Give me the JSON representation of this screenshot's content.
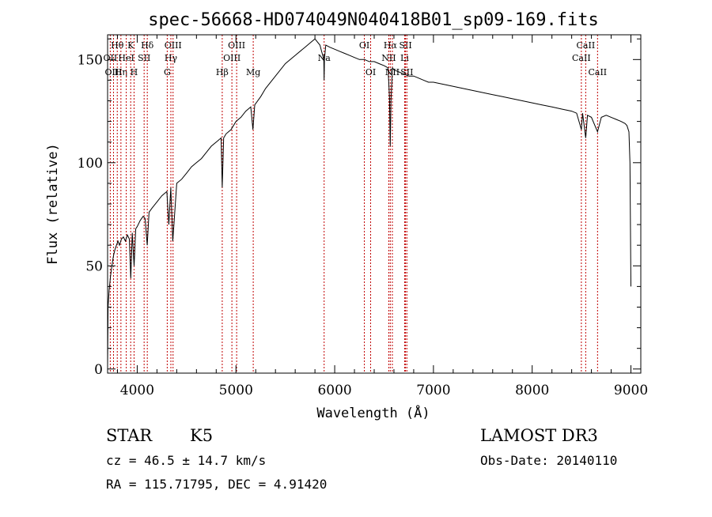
{
  "title": "spec-56668-HD074049N040418B01_sp09-169.fits",
  "info": {
    "class": "STAR",
    "subclass": "K5",
    "cz": "cz = 46.5 ± 14.7 km/s",
    "radec": "RA = 115.71795, DEC =   4.91420",
    "survey": "LAMOST DR3",
    "obsdate": "Obs-Date: 20140110"
  },
  "colors": {
    "line_marker": "#c00000",
    "spectrum": "#000000",
    "axes": "#000000"
  },
  "chart_data": {
    "type": "line",
    "title": "spec-56668-HD074049N040418B01_sp09-169.fits",
    "xlabel": "Wavelength (Å)",
    "ylabel": "Flux (relative)",
    "xlim": [
      3700,
      9100
    ],
    "ylim": [
      -2,
      162
    ],
    "xticks": [
      4000,
      5000,
      6000,
      7000,
      8000,
      9000
    ],
    "xtick_labels": [
      "4000",
      "5000",
      "6000",
      "7000",
      "8000",
      "9000"
    ],
    "yticks": [
      0,
      50,
      100,
      150
    ],
    "ytick_labels": [
      "0",
      "50",
      "100",
      "150"
    ],
    "grid": false,
    "series": [
      {
        "x": [
          3700,
          3705,
          3715,
          3730,
          3750,
          3760,
          3775,
          3790,
          3805,
          3820,
          3840,
          3860,
          3880,
          3900,
          3920,
          3935,
          3950,
          3968,
          3985,
          4000,
          4030,
          4060,
          4080,
          4101,
          4120,
          4150,
          4200,
          4250,
          4300,
          4320,
          4340,
          4360,
          4400,
          4450,
          4500,
          4550,
          4600,
          4650,
          4700,
          4750,
          4800,
          4850,
          4861,
          4875,
          4900,
          4950,
          5000,
          5050,
          5100,
          5150,
          5172,
          5190,
          5250,
          5300,
          5400,
          5500,
          5600,
          5700,
          5750,
          5800,
          5850,
          5890,
          5893,
          5896,
          5910,
          5950,
          6000,
          6050,
          6100,
          6150,
          6200,
          6250,
          6300,
          6350,
          6400,
          6450,
          6500,
          6540,
          6555,
          6563,
          6570,
          6585,
          6600,
          6650,
          6700,
          6750,
          6800,
          6850,
          6900,
          6950,
          7000,
          7100,
          7200,
          7300,
          7400,
          7500,
          7600,
          7700,
          7800,
          7900,
          8000,
          8100,
          8200,
          8300,
          8400,
          8450,
          8498,
          8510,
          8542,
          8560,
          8600,
          8662,
          8700,
          8750,
          8800,
          8850,
          8900,
          8940,
          8960,
          8980,
          8990,
          9000
        ],
        "y": [
          2,
          30,
          38,
          45,
          52,
          55,
          58,
          60,
          62,
          60,
          63,
          64,
          62,
          65,
          63,
          44,
          66,
          50,
          68,
          69,
          72,
          74,
          73,
          60,
          76,
          78,
          81,
          84,
          86,
          70,
          88,
          62,
          90,
          92,
          95,
          98,
          100,
          102,
          105,
          108,
          110,
          112,
          88,
          112,
          114,
          116,
          120,
          122,
          125,
          127,
          116,
          128,
          132,
          136,
          142,
          148,
          152,
          156,
          158,
          160,
          157,
          150,
          140,
          150,
          157,
          156,
          155,
          154,
          153,
          152,
          151,
          150,
          150,
          149,
          149,
          148,
          147,
          146,
          132,
          108,
          130,
          146,
          145,
          144,
          143,
          142,
          142,
          141,
          140,
          139,
          139,
          138,
          137,
          136,
          135,
          134,
          133,
          132,
          131,
          130,
          129,
          128,
          127,
          126,
          125,
          124,
          116,
          124,
          112,
          123,
          122,
          115,
          122,
          123,
          122,
          121,
          120,
          119,
          118,
          115,
          100,
          40
        ]
      }
    ],
    "line_markers": [
      {
        "label": "Hθ",
        "wave": 3798,
        "row": 0
      },
      {
        "label": "OII",
        "wave": 3727,
        "row": 1
      },
      {
        "label": "OIII",
        "wave": 3760,
        "row": 2
      },
      {
        "label": "Hη",
        "wave": 3835,
        "row": 2
      },
      {
        "label": "K",
        "wave": 3934,
        "row": 0
      },
      {
        "label": "HeI",
        "wave": 3889,
        "row": 1
      },
      {
        "label": "H",
        "wave": 3968,
        "row": 2
      },
      {
        "label": "SII",
        "wave": 4070,
        "row": 1
      },
      {
        "label": "Hδ",
        "wave": 4102,
        "row": 0
      },
      {
        "label": "OIII",
        "wave": 4363,
        "row": 0
      },
      {
        "label": "Hγ",
        "wave": 4341,
        "row": 1
      },
      {
        "label": "G",
        "wave": 4304,
        "row": 2
      },
      {
        "label": "Hβ",
        "wave": 4861,
        "row": 2
      },
      {
        "label": "OIII",
        "wave": 5007,
        "row": 0
      },
      {
        "label": "OIII",
        "wave": 4959,
        "row": 1
      },
      {
        "label": "Mg",
        "wave": 5175,
        "row": 2
      },
      {
        "label": "Na",
        "wave": 5893,
        "row": 1
      },
      {
        "label": "OI",
        "wave": 6300,
        "row": 0
      },
      {
        "label": "OI",
        "wave": 6364,
        "row": 2
      },
      {
        "label": "Hα",
        "wave": 6563,
        "row": 0
      },
      {
        "label": "NII",
        "wave": 6548,
        "row": 1
      },
      {
        "label": "NII",
        "wave": 6584,
        "row": 2
      },
      {
        "label": "SII",
        "wave": 6717,
        "row": 0
      },
      {
        "label": "Li",
        "wave": 6708,
        "row": 1
      },
      {
        "label": "SII",
        "wave": 6731,
        "row": 2
      },
      {
        "label": "CaII",
        "wave": 8542,
        "row": 0
      },
      {
        "label": "CaII",
        "wave": 8498,
        "row": 1
      },
      {
        "label": "CaII",
        "wave": 8662,
        "row": 2
      }
    ]
  }
}
